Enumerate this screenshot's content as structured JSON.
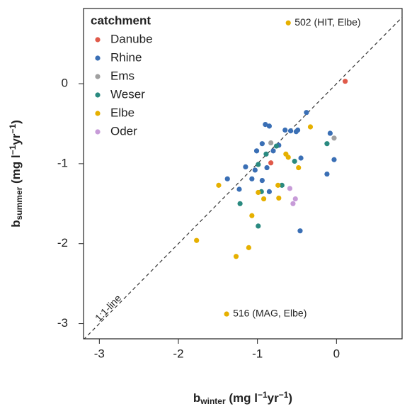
{
  "chart_data": {
    "type": "scatter",
    "xlabel": [
      {
        "text": "b"
      },
      {
        "text": "winter",
        "shift": "sub"
      },
      {
        "text": " (mg l"
      },
      {
        "text": "−1",
        "shift": "super"
      },
      {
        "text": "yr"
      },
      {
        "text": "−1",
        "shift": "super"
      },
      {
        "text": ")"
      }
    ],
    "ylabel": [
      {
        "text": "b"
      },
      {
        "text": "summer",
        "shift": "sub"
      },
      {
        "text": " (mg l"
      },
      {
        "text": "−1",
        "shift": "super"
      },
      {
        "text": "yr"
      },
      {
        "text": "−1",
        "shift": "super"
      },
      {
        "text": ")"
      }
    ],
    "xlim": [
      -3.2,
      0.83
    ],
    "ylim": [
      -3.19,
      0.94
    ],
    "xticks": [
      -3,
      -2,
      -1,
      0
    ],
    "yticks": [
      -3,
      -2,
      -1,
      0
    ],
    "legend_title": "catchment",
    "legend_position": "upper left",
    "line_label": "1:1-line",
    "annotations": [
      "502 (HIT, Elbe)",
      "516 (MAG, Elbe)"
    ],
    "series": [
      {
        "name": "Danube",
        "color": "#e05a4a",
        "x": [
          0.11,
          -0.83
        ],
        "y": [
          0.03,
          -0.99
        ]
      },
      {
        "name": "Rhine",
        "color": "#3a6fb5",
        "x": [
          -0.38,
          -0.9,
          -0.85,
          -0.65,
          -0.51,
          -0.08,
          -0.94,
          -1.01,
          -0.8,
          -0.73,
          -0.45,
          -0.03,
          -1.15,
          -1.03,
          -0.88,
          -1.07,
          -0.94,
          -1.38,
          -0.12,
          -1.23,
          -0.85,
          -0.46,
          -0.58,
          -0.49
        ],
        "y": [
          -0.36,
          -0.51,
          -0.53,
          -0.58,
          -0.6,
          -0.62,
          -0.75,
          -0.84,
          -0.84,
          -0.77,
          -0.93,
          -0.95,
          -1.04,
          -1.08,
          -1.05,
          -1.19,
          -1.21,
          -1.19,
          -1.13,
          -1.32,
          -1.35,
          -1.84,
          -0.59,
          -0.58
        ]
      },
      {
        "name": "Ems",
        "color": "#a0a0a0",
        "x": [
          -0.03,
          -0.83
        ],
        "y": [
          -0.68,
          -0.74
        ]
      },
      {
        "name": "Weser",
        "color": "#2a8a80",
        "x": [
          -0.12,
          -0.89,
          -0.99,
          -0.53,
          -0.69,
          -0.95,
          -1.22,
          -0.99,
          -0.76
        ],
        "y": [
          -0.75,
          -0.88,
          -1.01,
          -0.97,
          -1.27,
          -1.35,
          -1.5,
          -1.78,
          -0.78
        ]
      },
      {
        "name": "Elbe",
        "color": "#e6b000",
        "x": [
          -0.61,
          -0.33,
          -0.64,
          -0.61,
          -0.48,
          -1.49,
          -0.74,
          -0.99,
          -0.92,
          -0.73,
          -1.07,
          -1.77,
          -1.11,
          -1.27,
          -1.39
        ],
        "y": [
          0.76,
          -0.54,
          -0.88,
          -0.92,
          -1.05,
          -1.27,
          -1.27,
          -1.36,
          -1.44,
          -1.43,
          -1.65,
          -1.96,
          -2.05,
          -2.16,
          -2.88
        ]
      },
      {
        "name": "Oder",
        "color": "#c79bd8",
        "x": [
          -0.59,
          -0.52,
          -0.55
        ],
        "y": [
          -1.31,
          -1.44,
          -1.5
        ]
      }
    ]
  }
}
